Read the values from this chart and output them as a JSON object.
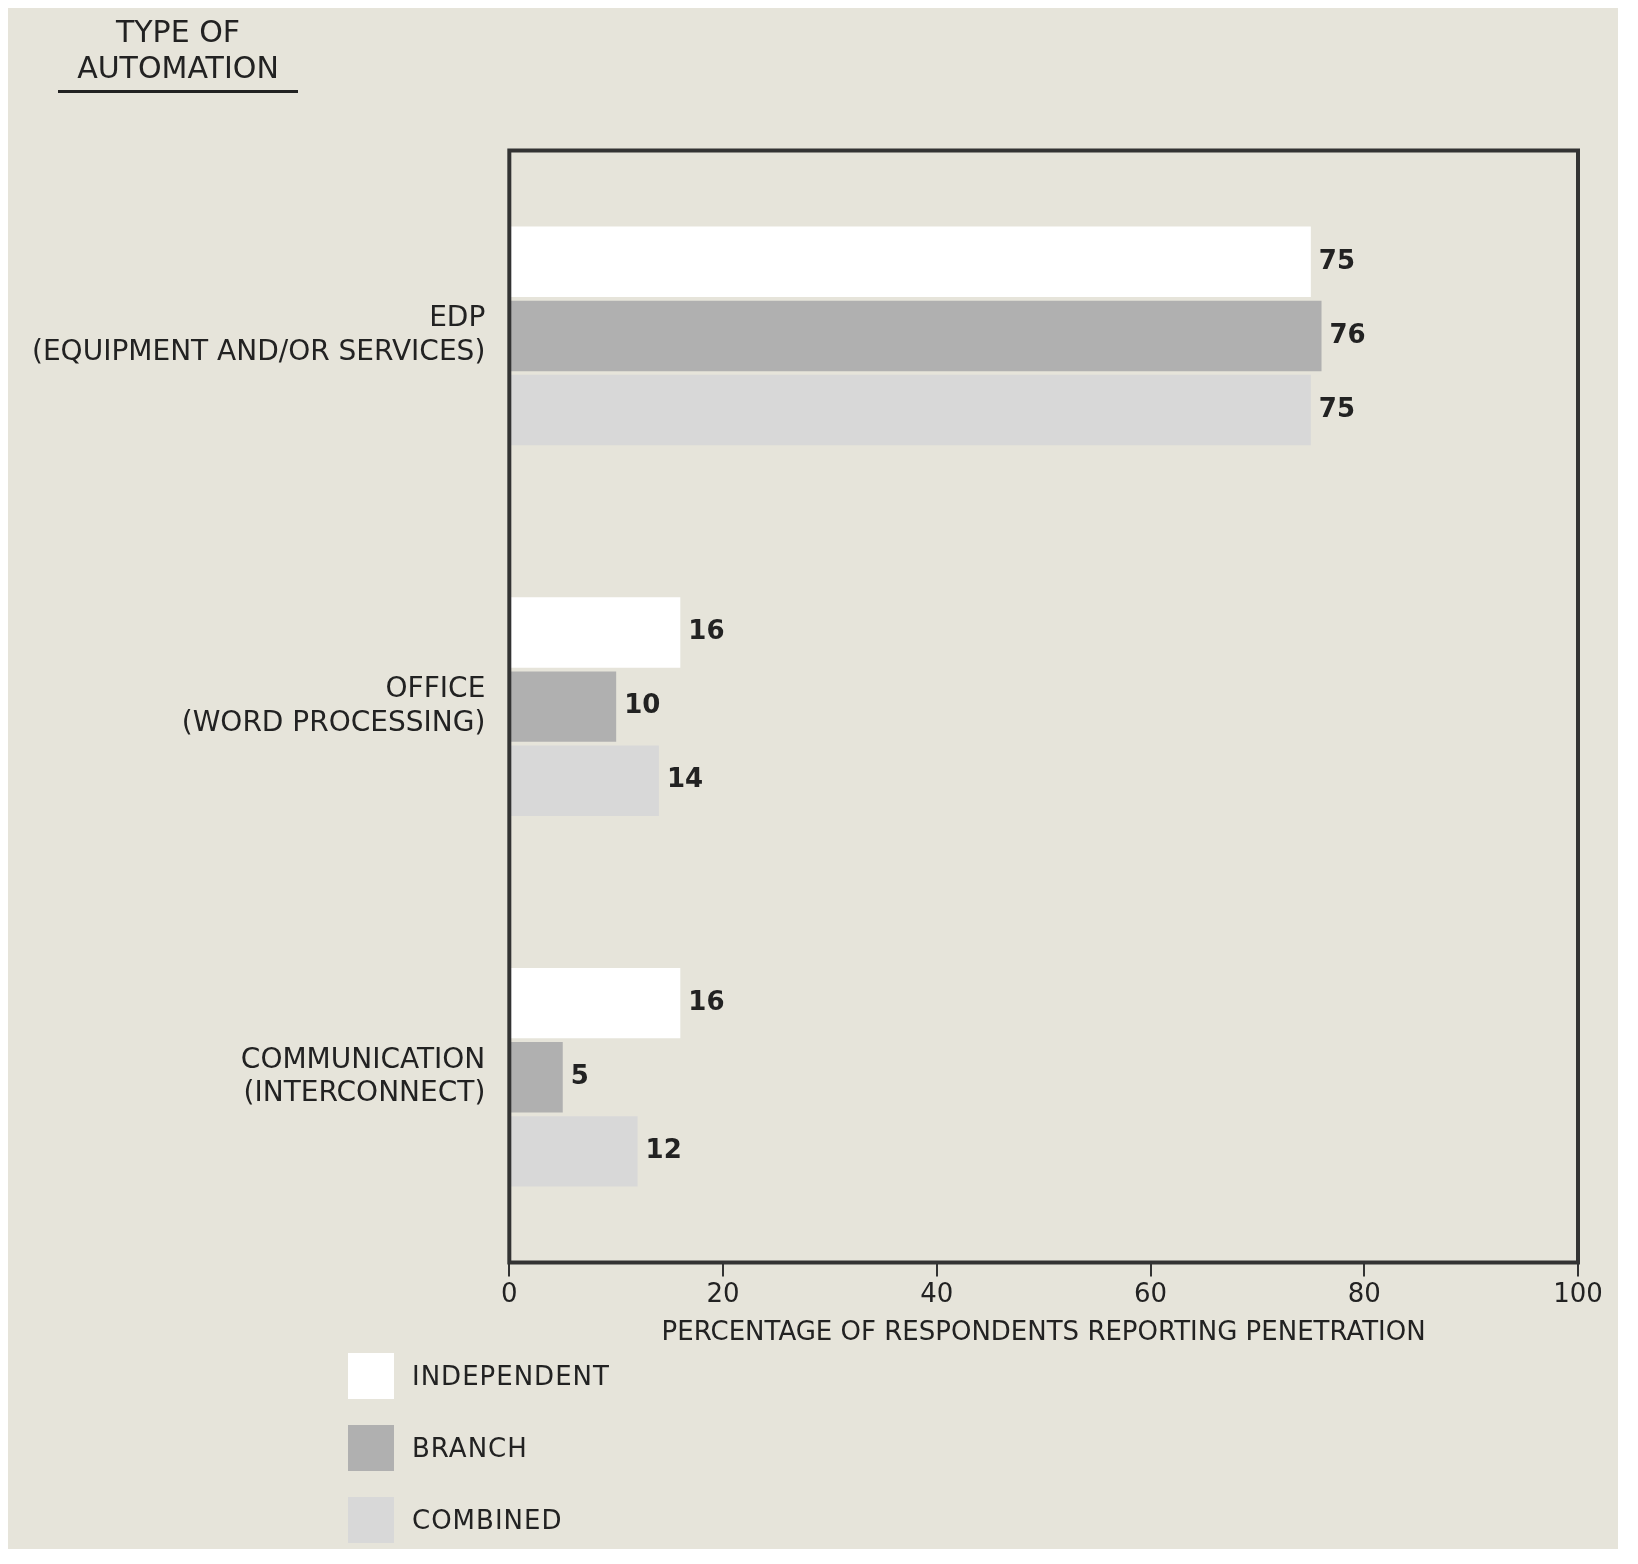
{
  "chart_data": {
    "type": "bar",
    "orientation": "horizontal",
    "ylabel": "TYPE OF AUTOMATION",
    "xlabel": "PERCENTAGE OF RESPONDENTS REPORTING PENETRATION",
    "categories": [
      "EDP (EQUIPMENT AND/OR SERVICES)",
      "OFFICE (WORD PROCESSING)",
      "COMMUNICATION (INTERCONNECT)"
    ],
    "series": [
      {
        "name": "INDEPENDENT",
        "color": "#ffffff",
        "values": [
          75,
          16,
          16
        ]
      },
      {
        "name": "BRANCH",
        "color": "#b0b0b0",
        "values": [
          76,
          10,
          5
        ]
      },
      {
        "name": "COMBINED",
        "color": "#d8d8d8",
        "values": [
          75,
          14,
          12
        ]
      }
    ],
    "xlim": [
      0,
      100
    ],
    "xticks": [
      0,
      20,
      40,
      60,
      80,
      100
    ],
    "data_labels": true,
    "grid": false,
    "legend": "bottom left"
  }
}
